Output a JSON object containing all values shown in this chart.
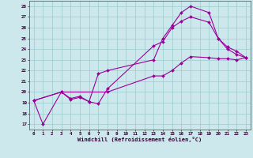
{
  "xlabel": "Windchill (Refroidissement éolien,°C)",
  "bg_color": "#cce8ec",
  "grid_color": "#99cccc",
  "line_color": "#990099",
  "xlim": [
    -0.5,
    23.5
  ],
  "ylim": [
    16.5,
    28.5
  ],
  "xticks": [
    0,
    1,
    2,
    3,
    4,
    5,
    6,
    7,
    8,
    9,
    10,
    11,
    12,
    13,
    14,
    15,
    16,
    17,
    18,
    19,
    20,
    21,
    22,
    23
  ],
  "yticks": [
    17,
    18,
    19,
    20,
    21,
    22,
    23,
    24,
    25,
    26,
    27,
    28
  ],
  "line1_x": [
    0,
    1,
    3,
    4,
    5,
    6,
    7,
    8,
    13,
    14,
    15,
    16,
    17,
    19,
    20,
    21,
    22,
    23
  ],
  "line1_y": [
    19.2,
    17.0,
    20.0,
    19.3,
    19.5,
    19.1,
    18.9,
    20.3,
    24.3,
    24.7,
    26.0,
    26.6,
    27.0,
    26.5,
    25.0,
    24.0,
    23.5,
    23.2
  ],
  "line2_x": [
    0,
    3,
    4,
    5,
    6,
    7,
    8,
    13,
    14,
    15,
    16,
    17,
    19,
    20,
    21,
    22,
    23
  ],
  "line2_y": [
    19.2,
    20.0,
    19.4,
    19.6,
    19.1,
    21.7,
    22.0,
    23.0,
    25.0,
    26.2,
    27.4,
    28.0,
    27.4,
    25.0,
    24.2,
    23.8,
    23.2
  ],
  "line3_x": [
    0,
    3,
    8,
    13,
    14,
    15,
    16,
    17,
    19,
    20,
    21,
    22,
    23
  ],
  "line3_y": [
    19.2,
    20.0,
    20.0,
    21.5,
    21.5,
    22.0,
    22.7,
    23.3,
    23.2,
    23.1,
    23.1,
    23.0,
    23.2
  ]
}
